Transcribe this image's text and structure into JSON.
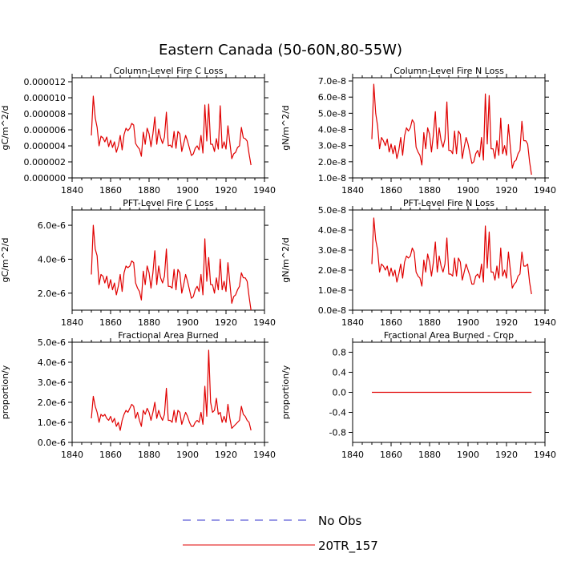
{
  "title": "Eastern Canada (50-60N,80-55W)",
  "legend": [
    {
      "label": "No Obs",
      "color": "#3333cc",
      "dash": true
    },
    {
      "label": "20TR_157",
      "color": "#e00000",
      "dash": false
    }
  ],
  "chart_data": [
    {
      "type": "line",
      "title": "Column-Level Fire C Loss",
      "ylabel": "gC/m^2/d",
      "xlim": [
        1840,
        1940
      ],
      "ylim": [
        0,
        1.25e-05
      ],
      "xticks": [
        1840,
        1860,
        1880,
        1900,
        1920,
        1940
      ],
      "yticks": [
        0,
        2e-06,
        4e-06,
        6e-06,
        8e-06,
        1e-05,
        1.2e-05
      ],
      "yticklabels": [
        "0.000000",
        "0.000002",
        "0.000004",
        "0.000006",
        "0.000008",
        "0.000010",
        "0.000012"
      ],
      "x_start": 1850,
      "series": [
        {
          "name": "20TR_157",
          "color": "#e00000",
          "values": [
            5.3e-06,
            1.02e-05,
            7.5e-06,
            6.3e-06,
            4e-06,
            5.2e-06,
            5e-06,
            4.5e-06,
            5.1e-06,
            3.9e-06,
            4.7e-06,
            3.8e-06,
            4.5e-06,
            3.2e-06,
            4e-06,
            5.3e-06,
            3.5e-06,
            5.4e-06,
            6.2e-06,
            5.9e-06,
            6.2e-06,
            6.8e-06,
            6.6e-06,
            4.3e-06,
            3.9e-06,
            3.6e-06,
            2.7e-06,
            5.7e-06,
            4.2e-06,
            6.2e-06,
            5.5e-06,
            3.9e-06,
            5.5e-06,
            7.6e-06,
            4.2e-06,
            6.1e-06,
            5e-06,
            4.3e-06,
            5.1e-06,
            8.2e-06,
            4e-06,
            4.1e-06,
            3.8e-06,
            5.8e-06,
            3.7e-06,
            5.8e-06,
            5.5e-06,
            3.3e-06,
            4.3e-06,
            5.3e-06,
            4.6e-06,
            3.7e-06,
            2.8e-06,
            3e-06,
            3.7e-06,
            4e-06,
            3.5e-06,
            5.3e-06,
            3.1e-06,
            9.1e-06,
            4.6e-06,
            9.2e-06,
            4.2e-06,
            4.2e-06,
            3.3e-06,
            4.9e-06,
            3.6e-06,
            9e-06,
            3.7e-06,
            4.5e-06,
            3.6e-06,
            6.5e-06,
            4.4e-06,
            2.4e-06,
            3e-06,
            3.2e-06,
            3.8e-06,
            4e-06,
            6.3e-06,
            5e-06,
            4.9e-06,
            4.6e-06,
            3e-06,
            1.6e-06
          ]
        }
      ]
    },
    {
      "type": "line",
      "title": "Column-Level Fire N Loss",
      "ylabel": "gN/m^2/d",
      "xlim": [
        1840,
        1940
      ],
      "ylim": [
        1e-08,
        7.2e-08
      ],
      "xticks": [
        1840,
        1860,
        1880,
        1900,
        1920,
        1940
      ],
      "yticks": [
        1e-08,
        2e-08,
        3e-08,
        4e-08,
        5e-08,
        6e-08,
        7e-08
      ],
      "yticklabels": [
        "1.0e-8",
        "2.0e-8",
        "3.0e-8",
        "4.0e-8",
        "5.0e-8",
        "6.0e-8",
        "7.0e-8"
      ],
      "x_start": 1850,
      "series": [
        {
          "name": "20TR_157",
          "color": "#e00000",
          "values": [
            3.4e-08,
            6.8e-08,
            5e-08,
            4.2e-08,
            2.8e-08,
            3.5e-08,
            3.3e-08,
            3e-08,
            3.4e-08,
            2.6e-08,
            3.1e-08,
            2.5e-08,
            3e-08,
            2.2e-08,
            2.7e-08,
            3.5e-08,
            2.4e-08,
            3.6e-08,
            4.1e-08,
            3.9e-08,
            4.1e-08,
            4.6e-08,
            4.4e-08,
            2.9e-08,
            2.6e-08,
            2.4e-08,
            1.8e-08,
            3.8e-08,
            2.8e-08,
            4.1e-08,
            3.7e-08,
            2.6e-08,
            3.7e-08,
            5.1e-08,
            2.8e-08,
            4.1e-08,
            3.3e-08,
            2.9e-08,
            3.4e-08,
            5.7e-08,
            2.7e-08,
            2.7e-08,
            2.5e-08,
            3.9e-08,
            2.5e-08,
            3.9e-08,
            3.7e-08,
            2.2e-08,
            2.9e-08,
            3.5e-08,
            3.1e-08,
            2.5e-08,
            1.9e-08,
            2e-08,
            2.5e-08,
            2.7e-08,
            2.3e-08,
            3.5e-08,
            2.1e-08,
            6.2e-08,
            3.1e-08,
            6.1e-08,
            2.8e-08,
            2.8e-08,
            2.2e-08,
            3.3e-08,
            2.4e-08,
            4.7e-08,
            2.5e-08,
            3e-08,
            2.4e-08,
            4.3e-08,
            2.9e-08,
            1.6e-08,
            2e-08,
            2.1e-08,
            2.5e-08,
            2.7e-08,
            4.5e-08,
            3.3e-08,
            3.3e-08,
            3.1e-08,
            2e-08,
            1.2e-08
          ]
        }
      ]
    },
    {
      "type": "line",
      "title": "PFT-Level Fire C Loss",
      "ylabel": "gC/m^2/d",
      "xlim": [
        1840,
        1940
      ],
      "ylim": [
        1e-06,
        6.9e-06
      ],
      "xticks": [
        1840,
        1860,
        1880,
        1900,
        1920,
        1940
      ],
      "yticks": [
        2e-06,
        4e-06,
        6e-06
      ],
      "yticklabels": [
        "2.0e-6",
        "4.0e-6",
        "6.0e-6"
      ],
      "x_start": 1850,
      "series": [
        {
          "name": "20TR_157",
          "color": "#e00000",
          "values": [
            3.1e-06,
            6e-06,
            4.6e-06,
            4.2e-06,
            2.5e-06,
            3.1e-06,
            3e-06,
            2.6e-06,
            3e-06,
            2.3e-06,
            2.8e-06,
            2.2e-06,
            2.6e-06,
            1.9e-06,
            2.4e-06,
            3.1e-06,
            2.1e-06,
            3.2e-06,
            3.6e-06,
            3.5e-06,
            3.6e-06,
            3.9e-06,
            3.8e-06,
            2.6e-06,
            2.3e-06,
            2.1e-06,
            1.6e-06,
            3.3e-06,
            2.5e-06,
            3.6e-06,
            3.2e-06,
            2.3e-06,
            3.2e-06,
            4.5e-06,
            2.5e-06,
            3.6e-06,
            2.9e-06,
            2.6e-06,
            3e-06,
            4.6e-06,
            2.4e-06,
            2.4e-06,
            2.3e-06,
            3.4e-06,
            2.2e-06,
            3.4e-06,
            3.2e-06,
            2e-06,
            2.5e-06,
            3.1e-06,
            2.7e-06,
            2.2e-06,
            1.7e-06,
            1.8e-06,
            2.2e-06,
            2.4e-06,
            2.1e-06,
            3.1e-06,
            1.9e-06,
            5.2e-06,
            2.7e-06,
            4.1e-06,
            2.5e-06,
            2.5e-06,
            2e-06,
            2.9e-06,
            2.2e-06,
            4e-06,
            2.2e-06,
            2.7e-06,
            2.1e-06,
            3.8e-06,
            2.6e-06,
            1.4e-06,
            1.8e-06,
            1.9e-06,
            2.2e-06,
            2.4e-06,
            3.2e-06,
            2.9e-06,
            2.9e-06,
            2.7e-06,
            1.8e-06,
            1e-06
          ]
        }
      ]
    },
    {
      "type": "line",
      "title": "PFT-Level Fire N Loss",
      "ylabel": "gN/m^2/d",
      "xlim": [
        1840,
        1940
      ],
      "ylim": [
        0,
        5e-08
      ],
      "xticks": [
        1840,
        1860,
        1880,
        1900,
        1920,
        1940
      ],
      "yticks": [
        0,
        1e-08,
        2e-08,
        3e-08,
        4e-08,
        5e-08
      ],
      "yticklabels": [
        "0.0e-8",
        "1.0e-8",
        "2.0e-8",
        "3.0e-8",
        "4.0e-8",
        "5.0e-8"
      ],
      "x_start": 1850,
      "series": [
        {
          "name": "20TR_157",
          "color": "#e00000",
          "values": [
            2.3e-08,
            4.6e-08,
            3.5e-08,
            3e-08,
            1.9e-08,
            2.3e-08,
            2.2e-08,
            2e-08,
            2.2e-08,
            1.7e-08,
            2.1e-08,
            1.7e-08,
            2e-08,
            1.4e-08,
            1.8e-08,
            2.3e-08,
            1.6e-08,
            2.4e-08,
            2.7e-08,
            2.6e-08,
            2.7e-08,
            3.1e-08,
            2.9e-08,
            1.9e-08,
            1.7e-08,
            1.6e-08,
            1.2e-08,
            2.5e-08,
            1.9e-08,
            2.8e-08,
            2.4e-08,
            1.7e-08,
            2.4e-08,
            3.4e-08,
            1.9e-08,
            2.7e-08,
            2.2e-08,
            1.9e-08,
            2.3e-08,
            3.6e-08,
            1.8e-08,
            1.8e-08,
            1.7e-08,
            2.6e-08,
            1.7e-08,
            2.6e-08,
            2.4e-08,
            1.5e-08,
            1.9e-08,
            2.3e-08,
            2e-08,
            1.7e-08,
            1.3e-08,
            1.3e-08,
            1.7e-08,
            1.8e-08,
            1.6e-08,
            2.3e-08,
            1.4e-08,
            4.2e-08,
            2.1e-08,
            3.9e-08,
            1.9e-08,
            1.9e-08,
            1.5e-08,
            2.2e-08,
            1.6e-08,
            3.1e-08,
            1.7e-08,
            2e-08,
            1.6e-08,
            2.9e-08,
            2e-08,
            1.1e-08,
            1.3e-08,
            1.4e-08,
            1.7e-08,
            1.8e-08,
            2.9e-08,
            2.2e-08,
            2.2e-08,
            2.3e-08,
            1.4e-08,
            8e-09
          ]
        }
      ]
    },
    {
      "type": "line",
      "title": "Fractional Area Burned",
      "ylabel": "proportion/y",
      "xlim": [
        1840,
        1940
      ],
      "ylim": [
        0,
        5e-06
      ],
      "xticks": [
        1840,
        1860,
        1880,
        1900,
        1920,
        1940
      ],
      "yticks": [
        0,
        1e-06,
        2e-06,
        3e-06,
        4e-06,
        5e-06
      ],
      "yticklabels": [
        "0.0e-6",
        "1.0e-6",
        "2.0e-6",
        "3.0e-6",
        "4.0e-6",
        "5.0e-6"
      ],
      "x_start": 1850,
      "series": [
        {
          "name": "20TR_157",
          "color": "#e00000",
          "values": [
            1.2e-06,
            2.3e-06,
            1.8e-06,
            1.5e-06,
            1e-06,
            1.4e-06,
            1.3e-06,
            1.4e-06,
            1.2e-06,
            1.1e-06,
            1.3e-06,
            1e-06,
            1.2e-06,
            8e-07,
            1e-06,
            6e-07,
            1.1e-06,
            1.4e-06,
            1.6e-06,
            1.5e-06,
            1.7e-06,
            1.9e-06,
            1.8e-06,
            1.2e-06,
            1.5e-06,
            1.1e-06,
            8e-07,
            1.6e-06,
            1.4e-06,
            1.7e-06,
            1.5e-06,
            1.1e-06,
            1.5e-06,
            2e-06,
            1.2e-06,
            1.6e-06,
            1.3e-06,
            1.1e-06,
            1.4e-06,
            2.7e-06,
            1.1e-06,
            1.1e-06,
            1e-06,
            1.6e-06,
            1e-06,
            1.6e-06,
            1.5e-06,
            9e-07,
            1.2e-06,
            1.5e-06,
            1.3e-06,
            1e-06,
            8e-07,
            8e-07,
            1e-06,
            1.1e-06,
            1e-06,
            1.5e-06,
            9e-07,
            2.8e-06,
            1.3e-06,
            4.6e-06,
            2e-06,
            1.5e-06,
            1.6e-06,
            2.2e-06,
            1.4e-06,
            1.5e-06,
            1e-06,
            1.3e-06,
            1e-06,
            1.9e-06,
            1.2e-06,
            7e-07,
            8e-07,
            9e-07,
            1e-06,
            1.1e-06,
            1.8e-06,
            1.4e-06,
            1.3e-06,
            1.1e-06,
            1e-06,
            6e-07
          ]
        }
      ]
    },
    {
      "type": "line",
      "title": "Fractional Area Burned - Crop",
      "ylabel": "proportion/y",
      "xlim": [
        1840,
        1940
      ],
      "ylim": [
        -1.0,
        1.0
      ],
      "xticks": [
        1840,
        1860,
        1880,
        1900,
        1920,
        1940
      ],
      "yticks": [
        -0.8,
        -0.4,
        0.0,
        0.4,
        0.8
      ],
      "yticklabels": [
        "-0.8",
        "-0.4",
        "0.0",
        "0.4",
        "0.8"
      ],
      "x_start": 1850,
      "series": [
        {
          "name": "20TR_157",
          "color": "#e00000",
          "values": [
            0,
            0
          ]
        }
      ],
      "x_explicit": [
        1850,
        1933
      ]
    }
  ]
}
